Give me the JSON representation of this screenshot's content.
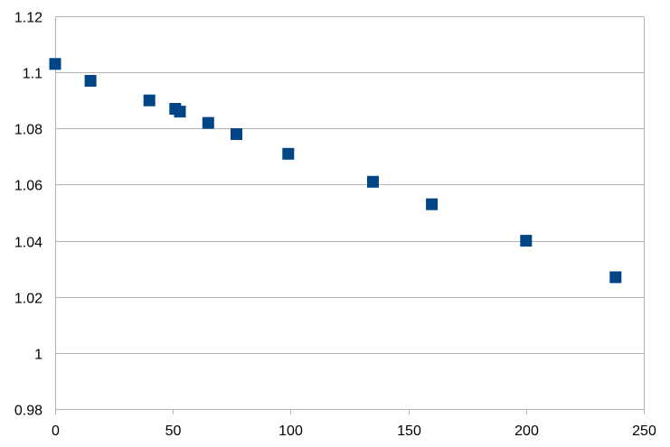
{
  "chart_data": {
    "type": "scatter",
    "title": "",
    "xlabel": "",
    "ylabel": "",
    "xlim": [
      0,
      250
    ],
    "ylim": [
      0.98,
      1.12
    ],
    "x_ticks": [
      0,
      50,
      100,
      150,
      200,
      250
    ],
    "y_ticks": [
      0.98,
      1,
      1.02,
      1.04,
      1.06,
      1.08,
      1.1,
      1.12
    ],
    "x_tick_labels": [
      "0",
      "50",
      "100",
      "150",
      "200",
      "250"
    ],
    "y_tick_labels": [
      "0.98",
      "1",
      "1.02",
      "1.04",
      "1.06",
      "1.08",
      "1.1",
      "1.12"
    ],
    "grid": "horizontal",
    "legend": "none",
    "marker": "square",
    "marker_color": "#004586",
    "series": [
      {
        "x": [
          0,
          15,
          40,
          51,
          53,
          65,
          77,
          99,
          135,
          160,
          200,
          238
        ],
        "y": [
          1.103,
          1.097,
          1.09,
          1.087,
          1.086,
          1.082,
          1.078,
          1.071,
          1.061,
          1.053,
          1.04,
          1.027
        ]
      }
    ]
  }
}
